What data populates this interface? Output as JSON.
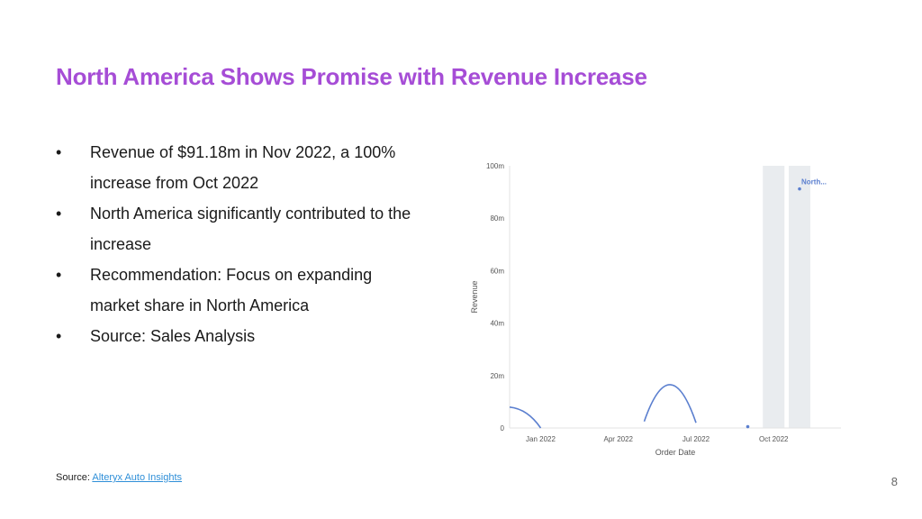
{
  "slide": {
    "title": "North America Shows Promise with Revenue Increase",
    "bullets": [
      {
        "line1": "Revenue of $91.18m in Nov 2022, a 100%",
        "line2": "increase from Oct 2022"
      },
      {
        "line1": "North America significantly contributed to the",
        "line2": "increase"
      },
      {
        "line1": "Recommendation: Focus on expanding",
        "line2": "market share in North America"
      },
      {
        "line1": "Source: Sales Analysis",
        "line2": ""
      }
    ],
    "bullet_glyph": "•",
    "source_label": "Source:",
    "source_link": "Alteryx Auto Insights",
    "page_number": "8"
  },
  "colors": {
    "title": "#a64dd6",
    "series": "#5b7fcf",
    "link": "#2f8fd8",
    "highlight_band": "#e9ecef"
  },
  "chart_data": {
    "type": "line",
    "xlabel": "Order Date",
    "ylabel": "Revenue",
    "x_ticks": [
      "Jan 2022",
      "Apr 2022",
      "Jul 2022",
      "Oct 2022"
    ],
    "y_ticks": [
      "0",
      "20m",
      "40m",
      "60m",
      "80m",
      "100m"
    ],
    "ylim": [
      0,
      100
    ],
    "y_unit": "m",
    "grid": false,
    "highlight_months": [
      "Oct 2022",
      "Nov 2022"
    ],
    "series": [
      {
        "name": "North...",
        "points": [
          {
            "x": "Dec 2021",
            "y": 5.5
          },
          {
            "x": "Jan 2022",
            "y": 0
          },
          {
            "x": "May 2022",
            "y": 2.5
          },
          {
            "x": "Jun 2022",
            "y": 16.5
          },
          {
            "x": "Jul 2022",
            "y": 2
          },
          {
            "x": "Sep 2022",
            "y": 0.5
          },
          {
            "x": "Nov 2022",
            "y": 91.18
          }
        ]
      }
    ]
  }
}
